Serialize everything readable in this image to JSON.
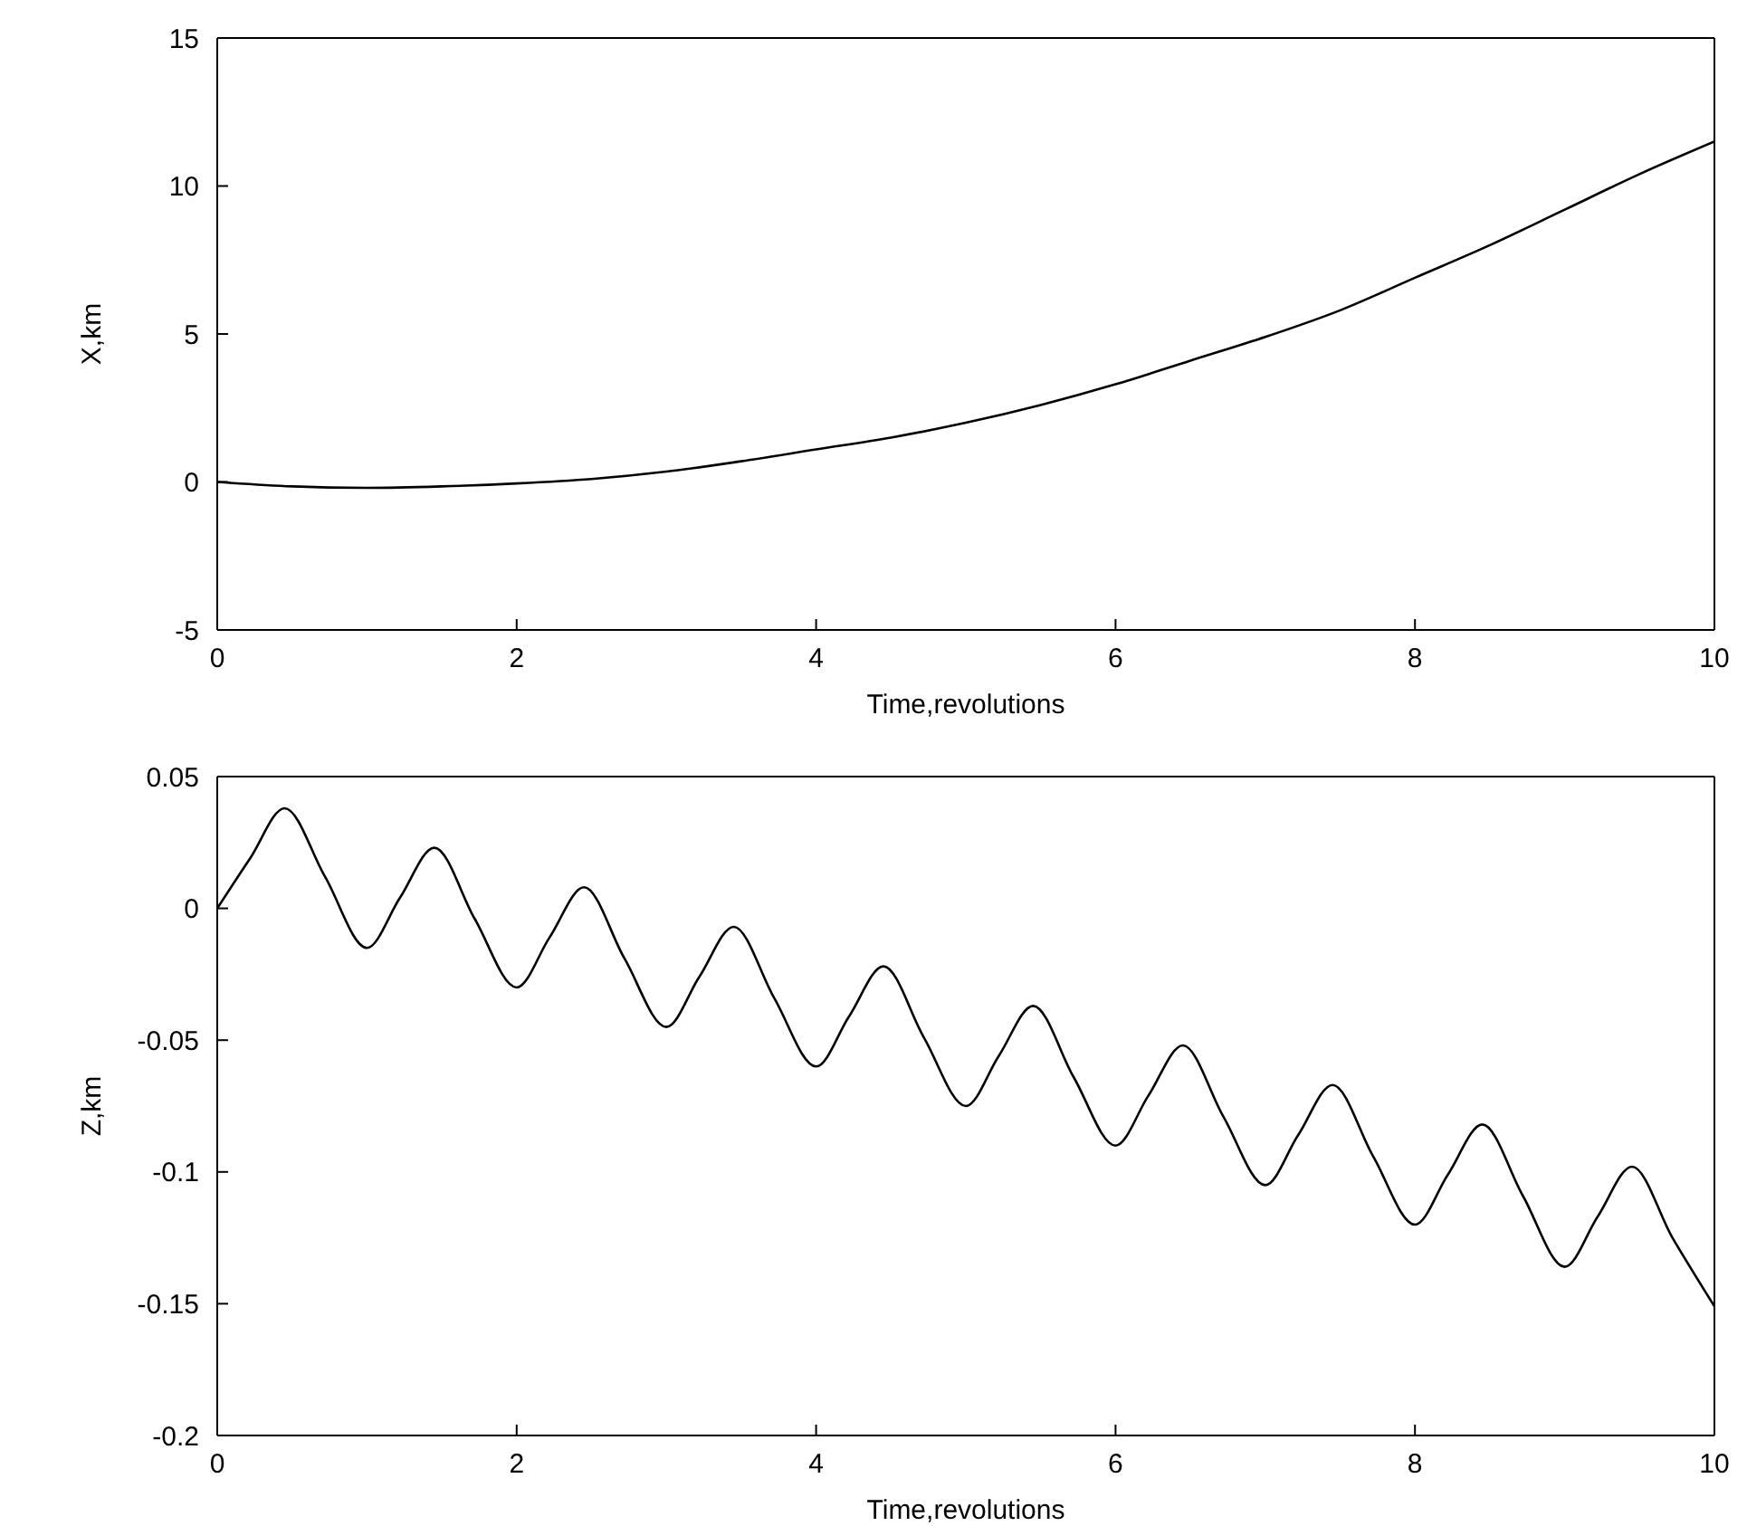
{
  "chart_data": [
    {
      "type": "line",
      "xlabel": "Time,revolutions",
      "ylabel": "X,km",
      "xlim": [
        0,
        10
      ],
      "xticks": [
        0,
        2,
        4,
        6,
        8,
        10
      ],
      "ylim": [
        -5,
        15
      ],
      "yticks": [
        -5,
        0,
        5,
        10,
        15
      ],
      "series": [
        {
          "color": "#000000",
          "x": [
            0,
            0.5,
            1,
            1.5,
            2,
            2.5,
            3,
            3.5,
            4,
            4.5,
            5,
            5.5,
            6,
            6.5,
            7,
            7.5,
            8,
            8.5,
            9,
            9.5,
            10
          ],
          "values": [
            0,
            -0.15,
            -0.2,
            -0.15,
            -0.05,
            0.1,
            0.35,
            0.7,
            1.1,
            1.5,
            2.0,
            2.6,
            3.3,
            4.1,
            4.9,
            5.8,
            6.9,
            8.0,
            9.2,
            10.4,
            11.5
          ]
        }
      ]
    },
    {
      "type": "line",
      "xlabel": "Time,revolutions",
      "ylabel": "Z,km",
      "xlim": [
        0,
        10
      ],
      "xticks": [
        0,
        2,
        4,
        6,
        8,
        10
      ],
      "ylim": [
        -0.2,
        0.05
      ],
      "yticks": [
        -0.2,
        -0.15,
        -0.1,
        -0.05,
        0,
        0.05
      ],
      "series": [
        {
          "color": "#000000",
          "x": [
            0,
            0.22,
            0.45,
            0.72,
            1,
            1.22,
            1.45,
            1.72,
            2,
            2.22,
            2.45,
            2.72,
            3,
            3.22,
            3.45,
            3.72,
            4,
            4.22,
            4.45,
            4.72,
            5,
            5.22,
            5.45,
            5.72,
            6,
            6.22,
            6.45,
            6.72,
            7,
            7.22,
            7.45,
            7.72,
            8,
            8.22,
            8.45,
            8.72,
            9,
            9.22,
            9.45,
            9.72,
            10
          ],
          "values": [
            0,
            0.019,
            0.038,
            0.012,
            -0.015,
            0.004,
            0.023,
            -0.004,
            -0.03,
            -0.011,
            0.008,
            -0.019,
            -0.045,
            -0.026,
            -0.007,
            -0.034,
            -0.06,
            -0.041,
            -0.022,
            -0.049,
            -0.075,
            -0.056,
            -0.037,
            -0.064,
            -0.09,
            -0.071,
            -0.052,
            -0.079,
            -0.105,
            -0.086,
            -0.067,
            -0.094,
            -0.12,
            -0.101,
            -0.082,
            -0.109,
            -0.136,
            -0.117,
            -0.098,
            -0.125,
            -0.151
          ]
        }
      ]
    }
  ]
}
